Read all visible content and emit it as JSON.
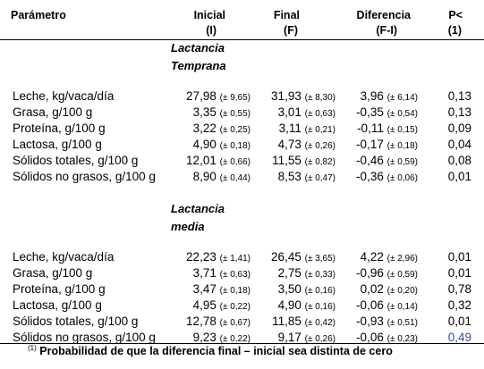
{
  "header": {
    "param": "Parámetro",
    "inicial": "Inicial",
    "inicial_sub": "(I)",
    "final": "Final",
    "final_sub": "(F)",
    "diferencia": "Diferencia",
    "diferencia_sub": "(F-I)",
    "p": "P<",
    "p_sub": "(1)"
  },
  "sections": [
    {
      "title_line1": "Lactancia",
      "title_line2": "Temprana",
      "rows": [
        {
          "param": "Leche, kg/vaca/día",
          "ini": "27,98",
          "ini_sd": "(± 9,65)",
          "fin": "31,93",
          "fin_sd": "(± 8,30)",
          "dif": "3,96",
          "dif_sd": "(± 6,14)",
          "p": "0,13"
        },
        {
          "param": "Grasa, g/100 g",
          "ini": "3,35",
          "ini_sd": "(± 0,55)",
          "fin": "3,01",
          "fin_sd": "(± 0,63)",
          "dif": "-0,35",
          "dif_sd": "(± 0,54)",
          "p": "0,13"
        },
        {
          "param": "Proteína, g/100 g",
          "ini": "3,22",
          "ini_sd": "(± 0,25)",
          "fin": "3,11",
          "fin_sd": "(± 0,21)",
          "dif": "-0,11",
          "dif_sd": "(± 0,15)",
          "p": "0,09"
        },
        {
          "param": "Lactosa, g/100 g",
          "ini": "4,90",
          "ini_sd": "(± 0,18)",
          "fin": "4,73",
          "fin_sd": "(± 0,26)",
          "dif": "-0,17",
          "dif_sd": "(± 0,18)",
          "p": "0,04"
        },
        {
          "param": "Sólidos totales, g/100 g",
          "ini": "12,01",
          "ini_sd": "(± 0,66)",
          "fin": "11,55",
          "fin_sd": "(± 0,82)",
          "dif": "-0,46",
          "dif_sd": "(± 0,59)",
          "p": "0,08"
        },
        {
          "param": "Sólidos no grasos, g/100 g",
          "ini": "8,90",
          "ini_sd": "(± 0,44)",
          "fin": "8,53",
          "fin_sd": "(± 0,47)",
          "dif": "-0,36",
          "dif_sd": "(± 0,06)",
          "p": "0,01"
        }
      ]
    },
    {
      "title_line1": "Lactancia",
      "title_line2": "media",
      "rows": [
        {
          "param": "Leche, kg/vaca/día",
          "ini": "22,23",
          "ini_sd": "(± 1,41)",
          "fin": "26,45",
          "fin_sd": "(± 3,65)",
          "dif": "4,22",
          "dif_sd": "(± 2,96)",
          "p": "0,01"
        },
        {
          "param": "Grasa, g/100 g",
          "ini": "3,71",
          "ini_sd": "(± 0,63)",
          "fin": "2,75",
          "fin_sd": "(± 0,33)",
          "dif": "-0,96",
          "dif_sd": "(± 0,59)",
          "p": "0,01"
        },
        {
          "param": "Proteína, g/100 g",
          "ini": "3,47",
          "ini_sd": "(± 0,18)",
          "fin": "3,50",
          "fin_sd": "(± 0,16)",
          "dif": "0,02",
          "dif_sd": "(± 0,20)",
          "p": "0,78"
        },
        {
          "param": "Lactosa, g/100 g",
          "ini": "4,95",
          "ini_sd": "(± 0,22)",
          "fin": "4,90",
          "fin_sd": "(± 0,16)",
          "dif": "-0,06",
          "dif_sd": "(± 0,14)",
          "p": "0,32"
        },
        {
          "param": "Sólidos totales, g/100 g",
          "ini": "12,78",
          "ini_sd": "(± 0,67)",
          "fin": "11,85",
          "fin_sd": "(± 0,42)",
          "dif": "-0,93",
          "dif_sd": "(± 0,51)",
          "p": "0,01"
        },
        {
          "param": "Sólidos no grasos, g/100 g",
          "ini": "9,23",
          "ini_sd": "(± 0,22)",
          "fin": "9,17",
          "fin_sd": "(± 0,26)",
          "dif": "-0,06",
          "dif_sd": "(± 0,23)",
          "p": "0,49"
        }
      ]
    }
  ],
  "footnote": {
    "mark": "(1)",
    "text": "Probabilidad de que la diferencia final – inicial sea distinta de cero"
  },
  "colors": {
    "highlight_p": "#2f4f8f"
  }
}
